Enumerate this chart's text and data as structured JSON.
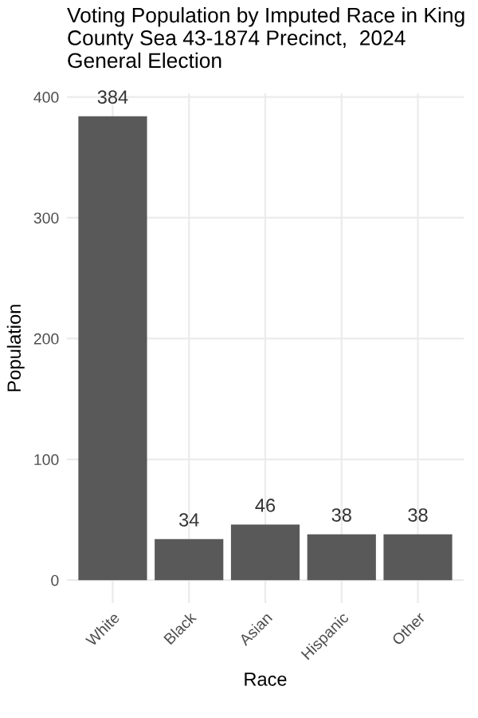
{
  "chart_data": {
    "type": "bar",
    "title": "Voting Population by Imputed Race in King County Sea 43-1874 Precinct,  2024 General Election",
    "xlabel": "Race",
    "ylabel": "Population",
    "categories": [
      "White",
      "Black",
      "Asian",
      "Hispanic",
      "Other"
    ],
    "values": [
      384,
      34,
      46,
      38,
      38
    ],
    "color": "#595959",
    "ylim": [
      -19,
      403
    ],
    "yticks": [
      0,
      100,
      200,
      300,
      400
    ],
    "grid": true,
    "data_labels": true
  }
}
